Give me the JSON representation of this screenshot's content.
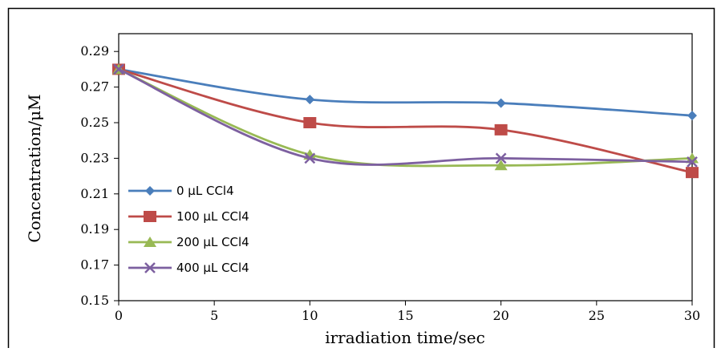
{
  "chart_data": {
    "type": "line",
    "title": "",
    "xlabel": "irradiation time/sec",
    "ylabel": "Concentration/μM",
    "xlim": [
      0,
      30
    ],
    "ylim": [
      0.15,
      0.3
    ],
    "xticks": [
      0,
      5,
      10,
      15,
      20,
      25,
      30
    ],
    "yticks": [
      "0.15",
      "0.17",
      "0.19",
      "0.21",
      "0.23",
      "0.25",
      "0.27",
      "0.29"
    ],
    "grid": false,
    "smooth": true,
    "legend_position": "lower-left",
    "x": [
      0,
      10,
      20,
      30
    ],
    "series": [
      {
        "name": "0 μL CCl4",
        "color": "#4a7ebb",
        "marker": "diamond",
        "values": [
          0.28,
          0.263,
          0.261,
          0.254
        ]
      },
      {
        "name": "100 μL CCl4",
        "color": "#be4b48",
        "marker": "square",
        "values": [
          0.28,
          0.25,
          0.246,
          0.222
        ]
      },
      {
        "name": "200 μL CCl4",
        "color": "#98b954",
        "marker": "triangle",
        "values": [
          0.28,
          0.232,
          0.226,
          0.23
        ]
      },
      {
        "name": "400 μL CCl4",
        "color": "#7d60a0",
        "marker": "x",
        "values": [
          0.28,
          0.23,
          0.23,
          0.228
        ]
      }
    ]
  }
}
